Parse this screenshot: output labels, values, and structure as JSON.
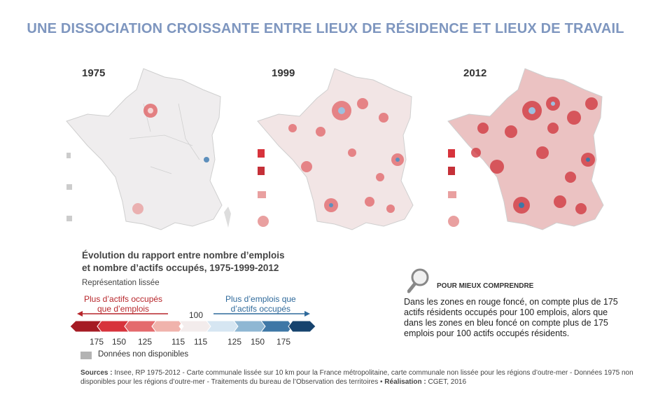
{
  "title": "UNE DISSOCIATION CROISSANTE ENTRE LIEUX DE RÉSIDENCE ET LIEUX DE TRAVAIL",
  "maps": [
    {
      "year": "1975"
    },
    {
      "year": "1999"
    },
    {
      "year": "2012"
    }
  ],
  "legend": {
    "title_line1": "Évolution du rapport entre nombre d’emplois",
    "title_line2": "et nombre d’actifs occupés, 1975-1999-2012",
    "subtitle": "Représentation lissée",
    "left_arrow_label_line1": "Plus d’actifs occupés",
    "left_arrow_label_line2": "que d’emplois",
    "right_arrow_label_line1": "Plus d’emplois que",
    "right_arrow_label_line2": "d’actifs occupés",
    "center_value": "100",
    "ticks": [
      "175",
      "150",
      "125",
      "115",
      "115",
      "125",
      "150",
      "175"
    ],
    "classes_colors": [
      "#a51b24",
      "#d7333c",
      "#e46a6d",
      "#f0b3ac",
      "#f3ecec",
      "#d6e6f2",
      "#8fb7d3",
      "#3e77a6",
      "#16436e"
    ],
    "nodata_label": "Données non disponibles",
    "nodata_color": "#b3b3b3",
    "red_color": "#b7262b",
    "blue_color": "#2f6a9b"
  },
  "help": {
    "heading": "POUR MIEUX COMPRENDRE",
    "text": "Dans les zones en rouge foncé, on compte plus de 175 actifs résidents occupés pour 100 emplois, alors que dans les zones en bleu foncé on compte plus de 175 emplois pour 100 actifs occupés résidents."
  },
  "sources": {
    "label": "Sources :",
    "text": " Insee, RP 1975-2012 - Carte communale lissée sur 10 km pour la France métropolitaine, carte communale non lissée pour les régions d’outre-mer - Données 1975 non disponibles pour les régions d’outre-mer - Traitements du bureau de l’Observation des territoires • ",
    "realisation_label": "Réalisation :",
    "realisation_text": " CGET, 2016"
  }
}
